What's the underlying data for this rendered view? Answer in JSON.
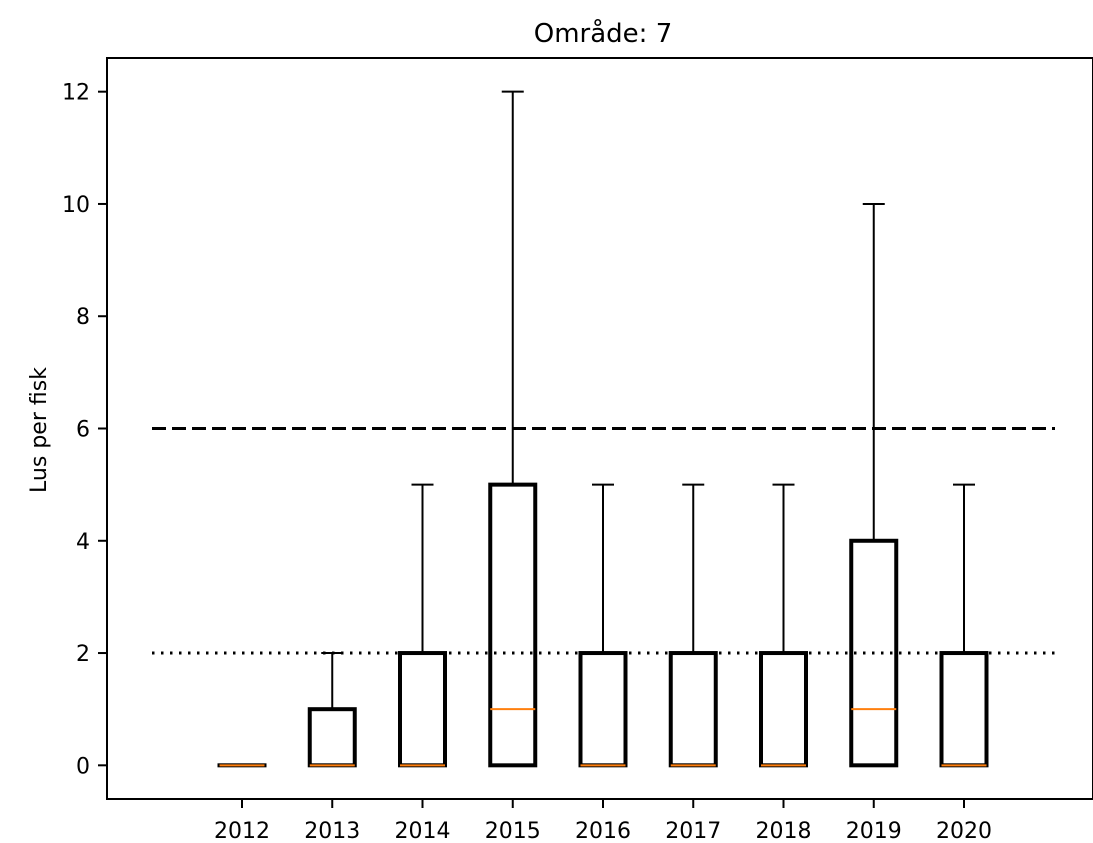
{
  "chart_data": {
    "type": "box",
    "title": "Område: 7",
    "xlabel": "",
    "ylabel": "Lus per fisk",
    "categories": [
      "2012",
      "2013",
      "2014",
      "2015",
      "2016",
      "2017",
      "2018",
      "2019",
      "2020"
    ],
    "boxes": [
      {
        "category": "2012",
        "whisker_low": 0,
        "q1": 0,
        "median": 0,
        "q3": 0,
        "whisker_high": 0
      },
      {
        "category": "2013",
        "whisker_low": 0,
        "q1": 0,
        "median": 0,
        "q3": 1,
        "whisker_high": 2
      },
      {
        "category": "2014",
        "whisker_low": 0,
        "q1": 0,
        "median": 0,
        "q3": 2,
        "whisker_high": 5
      },
      {
        "category": "2015",
        "whisker_low": 0,
        "q1": 0,
        "median": 1,
        "q3": 5,
        "whisker_high": 12
      },
      {
        "category": "2016",
        "whisker_low": 0,
        "q1": 0,
        "median": 0,
        "q3": 2,
        "whisker_high": 5
      },
      {
        "category": "2017",
        "whisker_low": 0,
        "q1": 0,
        "median": 0,
        "q3": 2,
        "whisker_high": 5
      },
      {
        "category": "2018",
        "whisker_low": 0,
        "q1": 0,
        "median": 0,
        "q3": 2,
        "whisker_high": 5
      },
      {
        "category": "2019",
        "whisker_low": 0,
        "q1": 0,
        "median": 1,
        "q3": 4,
        "whisker_high": 10
      },
      {
        "category": "2020",
        "whisker_low": 0,
        "q1": 0,
        "median": 0,
        "q3": 2,
        "whisker_high": 5
      }
    ],
    "reference_lines": [
      {
        "value": 6,
        "style": "dashed"
      },
      {
        "value": 2,
        "style": "dotted"
      }
    ],
    "yticks": [
      0,
      2,
      4,
      6,
      8,
      10,
      12
    ],
    "ylim": [
      -0.6,
      12.6
    ],
    "grid": false,
    "colors": {
      "box": "#000000",
      "median": "#ff7f0e",
      "reference": "#000000"
    }
  }
}
